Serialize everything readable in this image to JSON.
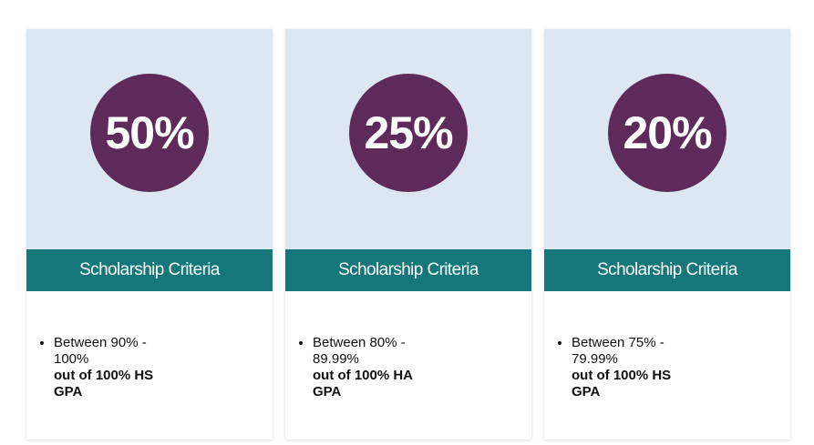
{
  "colors": {
    "card_top_bg": "#dde6f3",
    "badge_bg": "#5e2a59",
    "band_bg": "#15777a"
  },
  "cards": [
    {
      "percent": "50%",
      "band_label": "Scholarship Criteria",
      "range": "Between 90% - 100%",
      "basis": "out of 100% HS GPA"
    },
    {
      "percent": "25%",
      "band_label": "Scholarship Criteria",
      "range": "Between 80% - 89.99%",
      "basis": "out of 100% HA GPA"
    },
    {
      "percent": "20%",
      "band_label": "Scholarship Criteria",
      "range": "Between 75% - 79.99%",
      "basis": "out of 100% HS GPA"
    }
  ]
}
